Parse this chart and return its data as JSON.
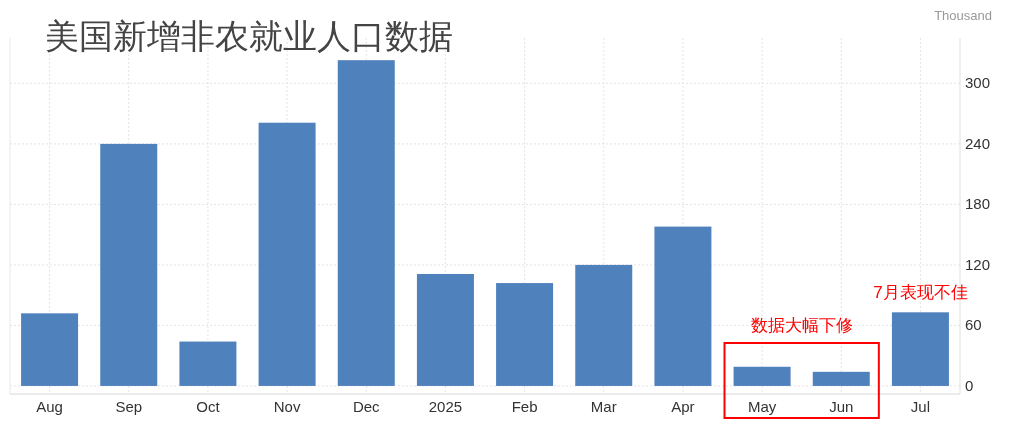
{
  "chart_data": {
    "type": "bar",
    "title": "美国新增非农就业人口数据",
    "ylabel": "Thousand",
    "categories": [
      "Aug",
      "Sep",
      "Oct",
      "Nov",
      "Dec",
      "2025",
      "Feb",
      "Mar",
      "Apr",
      "May",
      "Jun",
      "Jul"
    ],
    "values": [
      72,
      240,
      44,
      261,
      323,
      111,
      102,
      120,
      158,
      19,
      14,
      73
    ],
    "color": "#4f81bd",
    "ylim": [
      -8,
      345
    ],
    "yticks": [
      0,
      60,
      120,
      180,
      240,
      300
    ],
    "grid": true,
    "annotations": [
      "数据大幅下修",
      {
        "text": "7月表现不佳",
        "x": "Jul",
        "y": 73
      }
    ]
  }
}
